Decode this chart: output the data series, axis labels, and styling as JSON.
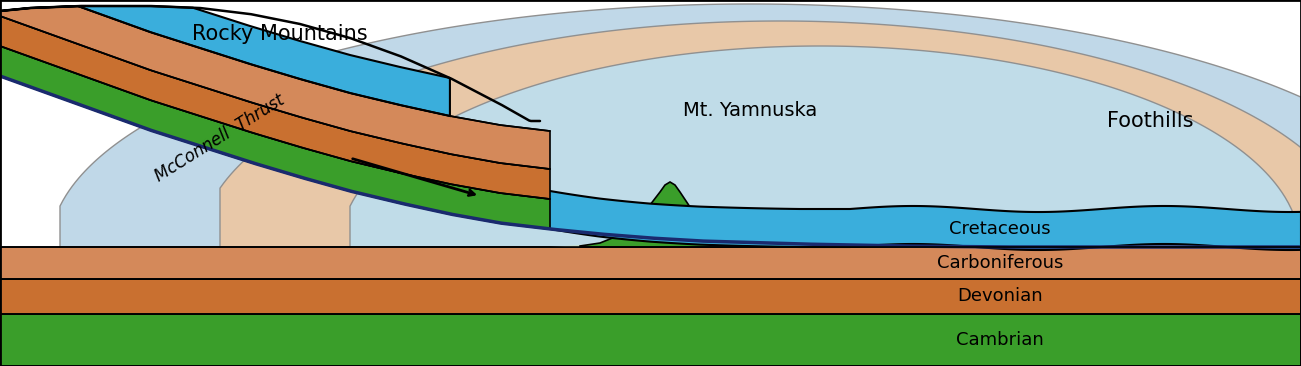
{
  "figsize": [
    13.01,
    3.66
  ],
  "dpi": 100,
  "bg_color": "#ffffff",
  "colors": {
    "blue_cretaceous": "#3aaedc",
    "orange_carboniferous": "#d4895a",
    "orange_devonian": "#c97030",
    "green_cambrian": "#3a9e2a",
    "dark_navy": "#1a2a6e",
    "arch_outer_blue": "#b8d8e8",
    "arch_mid_peach": "#e8c8a8",
    "arch_inner_blue": "#c5dce8",
    "light_green_mt": "#c8dfc5",
    "black": "#000000",
    "white": "#ffffff"
  },
  "labels": {
    "rocky_mountains": "Rocky Mountains",
    "mt_yamnuska": "Mt. Yamnuska",
    "foothills": "Foothills",
    "mcconnell": "McConnell  Thrust",
    "cretaceous": "Cretaceous",
    "carboniferous": "Carboniferous",
    "devonian": "Devonian",
    "cambrian": "Cambrian"
  },
  "thrust_x": [
    0.0,
    0.5,
    1.0,
    1.5,
    2.0,
    2.5,
    3.0,
    3.5,
    4.0,
    4.5,
    5.0,
    5.5,
    6.0,
    6.5,
    7.0,
    8.0,
    9.0,
    10.0,
    11.0,
    13.01
  ],
  "thrust_y": [
    2.9,
    2.72,
    2.54,
    2.36,
    2.2,
    2.04,
    1.89,
    1.75,
    1.63,
    1.52,
    1.43,
    1.37,
    1.32,
    1.28,
    1.25,
    1.22,
    1.2,
    1.19,
    1.19,
    1.19
  ],
  "label_fontsize": 13
}
